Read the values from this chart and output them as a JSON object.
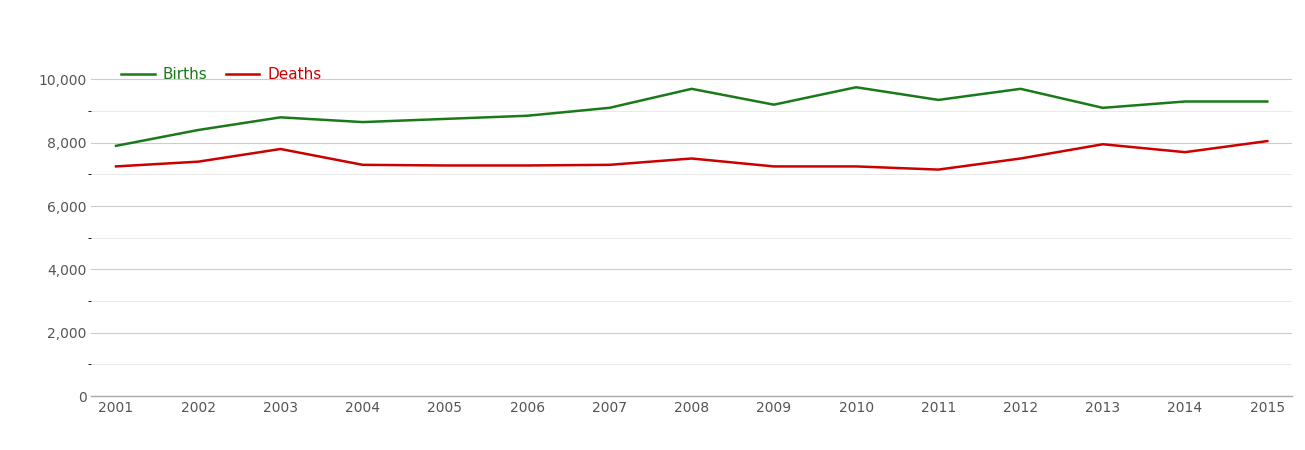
{
  "years": [
    2001,
    2002,
    2003,
    2004,
    2005,
    2006,
    2007,
    2008,
    2009,
    2010,
    2011,
    2012,
    2013,
    2014,
    2015
  ],
  "births": [
    7900,
    8400,
    8800,
    8650,
    8750,
    8850,
    9100,
    9700,
    9200,
    9750,
    9350,
    9700,
    9100,
    9300,
    9300
  ],
  "deaths": [
    7250,
    7400,
    7800,
    7300,
    7280,
    7280,
    7300,
    7500,
    7250,
    7250,
    7150,
    7500,
    7950,
    7700,
    8050
  ],
  "births_color": "#1a7a1a",
  "deaths_color": "#cc0000",
  "background_color": "#ffffff",
  "major_grid_color": "#cccccc",
  "minor_grid_color": "#e5e5e5",
  "line_width": 1.8,
  "ylim": [
    0,
    10800
  ],
  "yticks": [
    0,
    2000,
    4000,
    6000,
    8000,
    10000
  ],
  "legend_labels": [
    "Births",
    "Deaths"
  ],
  "legend_text_color": "#555555",
  "tick_label_color": "#555555",
  "figure_width": 13.05,
  "figure_height": 4.5
}
